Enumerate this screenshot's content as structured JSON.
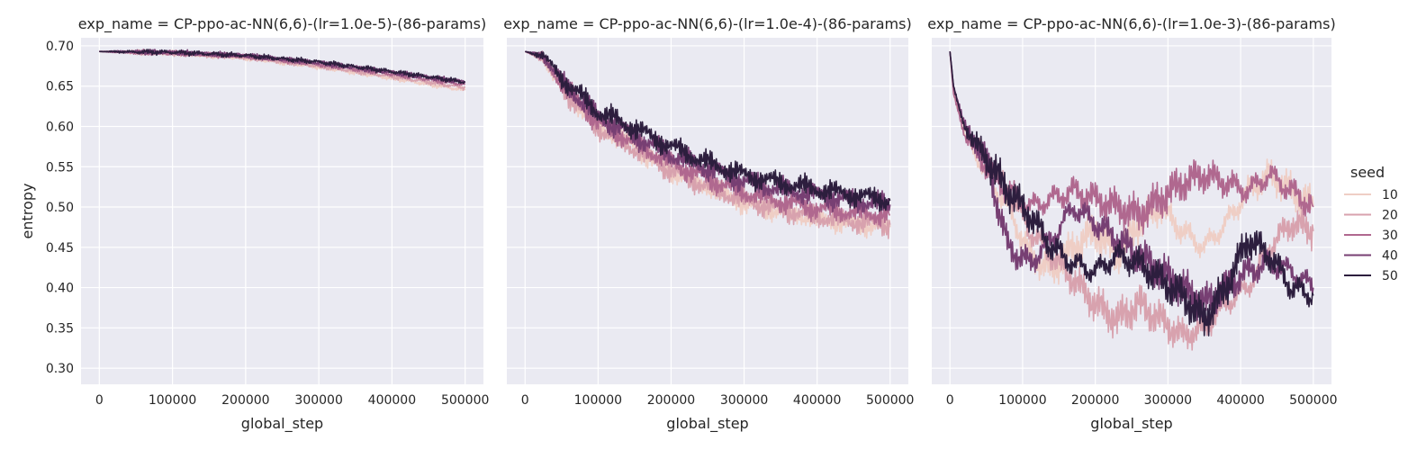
{
  "figure": {
    "ylabel": "entropy",
    "xlabel": "global_step",
    "legend_title": "seed",
    "legend_placement": "right",
    "background": "#EAEAF2",
    "grid": true
  },
  "chart_data": [
    {
      "type": "line",
      "title": "exp_name = CP-ppo-ac-NN(6,6)-(lr=1.0e-5)-(86-params)",
      "xlabel": "global_step",
      "ylabel": "entropy",
      "xlim": [
        -25000,
        525000
      ],
      "ylim": [
        0.28,
        0.71
      ],
      "xticks": [
        0,
        100000,
        200000,
        300000,
        400000,
        500000
      ],
      "yticks": [
        0.3,
        0.35,
        0.4,
        0.45,
        0.5,
        0.55,
        0.6,
        0.65,
        0.7
      ],
      "series": [
        {
          "name": "10",
          "color": "#EFCEC5",
          "x": [
            0,
            100000,
            200000,
            300000,
            400000,
            500000
          ],
          "y": [
            0.693,
            0.691,
            0.685,
            0.674,
            0.66,
            0.645
          ]
        },
        {
          "name": "20",
          "color": "#D8A2AE",
          "x": [
            0,
            100000,
            200000,
            300000,
            400000,
            500000
          ],
          "y": [
            0.693,
            0.691,
            0.686,
            0.675,
            0.662,
            0.648
          ]
        },
        {
          "name": "30",
          "color": "#B0688F",
          "x": [
            0,
            100000,
            200000,
            300000,
            400000,
            500000
          ],
          "y": [
            0.693,
            0.691,
            0.687,
            0.677,
            0.665,
            0.652
          ]
        },
        {
          "name": "40",
          "color": "#773F73",
          "x": [
            0,
            100000,
            200000,
            300000,
            400000,
            500000
          ],
          "y": [
            0.693,
            0.692,
            0.688,
            0.679,
            0.667,
            0.655
          ]
        },
        {
          "name": "50",
          "color": "#2D1E3E",
          "x": [
            0,
            100000,
            200000,
            300000,
            400000,
            500000
          ],
          "y": [
            0.693,
            0.692,
            0.688,
            0.68,
            0.668,
            0.655
          ]
        }
      ]
    },
    {
      "type": "line",
      "title": "exp_name = CP-ppo-ac-NN(6,6)-(lr=1.0e-4)-(86-params)",
      "xlabel": "global_step",
      "ylabel": "entropy",
      "xlim": [
        -25000,
        525000
      ],
      "ylim": [
        0.28,
        0.71
      ],
      "xticks": [
        0,
        100000,
        200000,
        300000,
        400000,
        500000
      ],
      "yticks": [
        0.3,
        0.35,
        0.4,
        0.45,
        0.5,
        0.55,
        0.6,
        0.65,
        0.7
      ],
      "series": [
        {
          "name": "10",
          "color": "#EFCEC5",
          "x": [
            0,
            25000,
            50000,
            100000,
            150000,
            200000,
            250000,
            300000,
            350000,
            400000,
            450000,
            500000
          ],
          "y": [
            0.693,
            0.685,
            0.65,
            0.6,
            0.575,
            0.545,
            0.525,
            0.505,
            0.495,
            0.485,
            0.48,
            0.475
          ]
        },
        {
          "name": "20",
          "color": "#D8A2AE",
          "x": [
            0,
            25000,
            50000,
            100000,
            150000,
            200000,
            250000,
            300000,
            350000,
            400000,
            450000,
            500000
          ],
          "y": [
            0.693,
            0.684,
            0.648,
            0.598,
            0.572,
            0.545,
            0.525,
            0.508,
            0.497,
            0.488,
            0.482,
            0.478
          ]
        },
        {
          "name": "30",
          "color": "#B0688F",
          "x": [
            0,
            25000,
            50000,
            100000,
            150000,
            200000,
            250000,
            300000,
            350000,
            400000,
            450000,
            500000
          ],
          "y": [
            0.693,
            0.686,
            0.652,
            0.605,
            0.58,
            0.555,
            0.535,
            0.518,
            0.507,
            0.498,
            0.493,
            0.49
          ]
        },
        {
          "name": "40",
          "color": "#773F73",
          "x": [
            0,
            25000,
            50000,
            100000,
            150000,
            200000,
            250000,
            300000,
            350000,
            400000,
            450000,
            500000
          ],
          "y": [
            0.693,
            0.687,
            0.656,
            0.612,
            0.588,
            0.565,
            0.548,
            0.532,
            0.522,
            0.515,
            0.508,
            0.503
          ]
        },
        {
          "name": "50",
          "color": "#2D1E3E",
          "x": [
            0,
            25000,
            50000,
            100000,
            150000,
            200000,
            250000,
            300000,
            350000,
            400000,
            450000,
            500000
          ],
          "y": [
            0.693,
            0.688,
            0.66,
            0.618,
            0.598,
            0.575,
            0.555,
            0.54,
            0.53,
            0.522,
            0.515,
            0.508
          ]
        }
      ]
    },
    {
      "type": "line",
      "title": "exp_name = CP-ppo-ac-NN(6,6)-(lr=1.0e-3)-(86-params)",
      "xlabel": "global_step",
      "ylabel": "entropy",
      "xlim": [
        -25000,
        525000
      ],
      "ylim": [
        0.28,
        0.71
      ],
      "xticks": [
        0,
        100000,
        200000,
        300000,
        400000,
        500000
      ],
      "yticks": [
        0.3,
        0.35,
        0.4,
        0.45,
        0.5,
        0.55,
        0.6,
        0.65,
        0.7
      ],
      "series": [
        {
          "name": "10",
          "color": "#EFCEC5",
          "x": [
            0,
            5000,
            20000,
            50000,
            80000,
            110000,
            140000,
            170000,
            200000,
            230000,
            260000,
            290000,
            320000,
            350000,
            380000,
            410000,
            440000,
            470000,
            500000
          ],
          "y": [
            0.693,
            0.64,
            0.59,
            0.54,
            0.5,
            0.44,
            0.42,
            0.45,
            0.47,
            0.44,
            0.48,
            0.5,
            0.47,
            0.45,
            0.48,
            0.52,
            0.54,
            0.52,
            0.5
          ]
        },
        {
          "name": "20",
          "color": "#D8A2AE",
          "x": [
            0,
            5000,
            20000,
            50000,
            80000,
            110000,
            140000,
            170000,
            200000,
            230000,
            260000,
            290000,
            320000,
            350000,
            380000,
            410000,
            440000,
            470000,
            500000
          ],
          "y": [
            0.693,
            0.645,
            0.6,
            0.56,
            0.52,
            0.47,
            0.44,
            0.41,
            0.38,
            0.36,
            0.38,
            0.36,
            0.34,
            0.35,
            0.38,
            0.4,
            0.45,
            0.48,
            0.47
          ]
        },
        {
          "name": "30",
          "color": "#B0688F",
          "x": [
            0,
            5000,
            20000,
            50000,
            80000,
            110000,
            140000,
            170000,
            200000,
            230000,
            260000,
            290000,
            320000,
            350000,
            380000,
            410000,
            440000,
            470000,
            500000
          ],
          "y": [
            0.693,
            0.64,
            0.59,
            0.55,
            0.52,
            0.5,
            0.51,
            0.52,
            0.51,
            0.5,
            0.49,
            0.51,
            0.53,
            0.54,
            0.53,
            0.52,
            0.54,
            0.52,
            0.5
          ]
        },
        {
          "name": "40",
          "color": "#773F73",
          "x": [
            0,
            5000,
            20000,
            50000,
            80000,
            110000,
            140000,
            170000,
            200000,
            230000,
            260000,
            290000,
            320000,
            350000,
            380000,
            410000,
            440000,
            470000,
            500000
          ],
          "y": [
            0.693,
            0.65,
            0.6,
            0.56,
            0.45,
            0.43,
            0.46,
            0.5,
            0.48,
            0.46,
            0.44,
            0.42,
            0.4,
            0.38,
            0.4,
            0.42,
            0.43,
            0.42,
            0.4
          ]
        },
        {
          "name": "50",
          "color": "#2D1E3E",
          "x": [
            0,
            5000,
            20000,
            50000,
            80000,
            110000,
            140000,
            170000,
            200000,
            230000,
            260000,
            290000,
            320000,
            350000,
            380000,
            410000,
            440000,
            470000,
            500000
          ],
          "y": [
            0.693,
            0.65,
            0.6,
            0.56,
            0.52,
            0.49,
            0.45,
            0.43,
            0.42,
            0.44,
            0.43,
            0.41,
            0.39,
            0.36,
            0.4,
            0.46,
            0.44,
            0.4,
            0.39
          ]
        }
      ]
    }
  ]
}
